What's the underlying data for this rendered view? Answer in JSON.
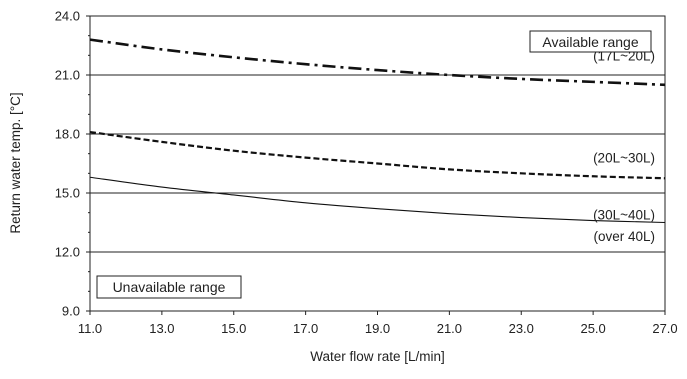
{
  "chart_data": {
    "type": "line",
    "xlabel": "Water flow rate [L/min]",
    "ylabel": "Return water temp. [°C]",
    "xlim": [
      11.0,
      27.0
    ],
    "ylim": [
      9.0,
      24.0
    ],
    "x_ticks": [
      "11.0",
      "13.0",
      "15.0",
      "17.0",
      "19.0",
      "21.0",
      "23.0",
      "25.0",
      "27.0"
    ],
    "y_ticks": [
      "9.0",
      "12.0",
      "15.0",
      "18.0",
      "21.0",
      "24.0"
    ],
    "reference_lines": [
      {
        "y": 21.0,
        "label": "(17L~20L)"
      },
      {
        "y": 18.0,
        "label": ""
      },
      {
        "y": 15.0,
        "label": ""
      },
      {
        "y": 12.0,
        "label": "(over 40L)"
      }
    ],
    "series": [
      {
        "label": "(17L~20L)",
        "style": "dash-dot",
        "x": [
          11,
          13,
          15,
          17,
          19,
          21,
          23,
          25,
          27
        ],
        "y": [
          22.8,
          22.3,
          21.9,
          21.55,
          21.25,
          21.0,
          20.8,
          20.65,
          20.5
        ]
      },
      {
        "label": "(20L~30L)",
        "style": "dashed",
        "x": [
          11,
          13,
          15,
          17,
          19,
          21,
          23,
          25,
          27
        ],
        "y": [
          18.1,
          17.6,
          17.15,
          16.8,
          16.5,
          16.2,
          16.0,
          15.85,
          15.75
        ]
      },
      {
        "label": "(30L~40L)",
        "style": "solid",
        "x": [
          11,
          13,
          15,
          17,
          19,
          21,
          23,
          25,
          27
        ],
        "y": [
          15.8,
          15.3,
          14.9,
          14.5,
          14.2,
          13.95,
          13.75,
          13.6,
          13.5
        ]
      }
    ],
    "annotations": {
      "available": "Available range",
      "unavailable": "Unavailable range"
    },
    "grid": false
  }
}
